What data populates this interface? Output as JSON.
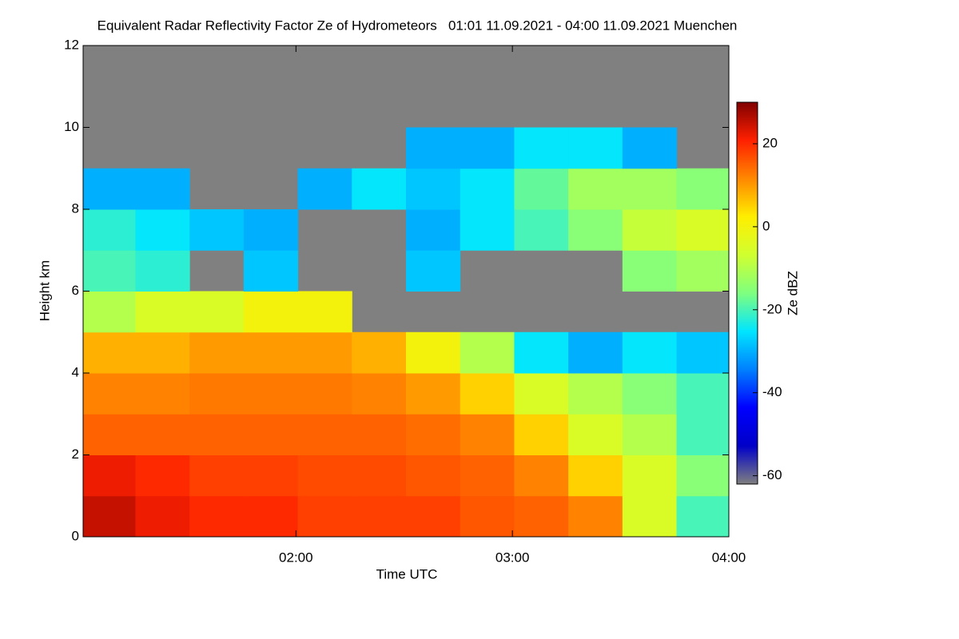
{
  "chart_data": {
    "type": "heatmap",
    "title": "Equivalent Radar Reflectivity Factor Ze of Hydrometeors   01:01 11.09.2021 - 04:00 11.09.2021 Muenchen",
    "x_label": "Time UTC",
    "y_label": "Height km",
    "colorbar_label": "Ze dBZ",
    "x": [
      68,
      83,
      98,
      113,
      128,
      143,
      158,
      173,
      188,
      203,
      218,
      233
    ],
    "y": [
      0.5,
      1.5,
      2.5,
      3.5,
      4.5,
      5.5,
      6.5,
      7.5,
      8.5,
      9.5,
      10.5,
      11.5
    ],
    "z": [
      [
        25,
        22,
        20,
        20,
        18,
        18,
        18,
        16,
        15,
        12,
        -5,
        -20
      ],
      [
        22,
        20,
        18,
        18,
        17,
        17,
        16,
        15,
        12,
        5,
        -5,
        -15
      ],
      [
        15,
        15,
        15,
        15,
        15,
        15,
        14,
        12,
        5,
        -5,
        -10,
        -20
      ],
      [
        12,
        12,
        13,
        13,
        13,
        12,
        10,
        5,
        -5,
        -10,
        -15,
        -20
      ],
      [
        8,
        8,
        10,
        10,
        10,
        8,
        0,
        -10,
        -25,
        -30,
        -25,
        -28
      ],
      [
        -10,
        -5,
        -5,
        0,
        0,
        null,
        null,
        null,
        null,
        null,
        null,
        null
      ],
      [
        -20,
        -22,
        null,
        -28,
        null,
        null,
        -28,
        null,
        null,
        null,
        -15,
        -12
      ],
      [
        -22,
        -25,
        -28,
        -30,
        null,
        null,
        -30,
        -25,
        -20,
        -15,
        -8,
        -5
      ],
      [
        -30,
        -30,
        null,
        null,
        -30,
        -25,
        -28,
        -25,
        -18,
        -12,
        -12,
        -15
      ],
      [
        null,
        null,
        null,
        null,
        null,
        null,
        -30,
        -30,
        -25,
        -25,
        -30,
        null
      ],
      [
        null,
        null,
        null,
        null,
        null,
        null,
        null,
        null,
        null,
        null,
        null,
        null
      ],
      [
        null,
        null,
        null,
        null,
        null,
        null,
        null,
        null,
        null,
        null,
        null,
        null
      ]
    ],
    "xlim": [
      61,
      240
    ],
    "ylim": [
      0,
      12
    ],
    "xticks": [
      {
        "value": 120,
        "label": "02:00"
      },
      {
        "value": 180,
        "label": "03:00"
      },
      {
        "value": 240,
        "label": "04:00"
      }
    ],
    "yticks": [
      0,
      2,
      4,
      6,
      8,
      10,
      12
    ],
    "zlim": [
      -62,
      30
    ],
    "zticks": [
      -60,
      -40,
      -20,
      0,
      20
    ],
    "colorscale": [
      "#808080",
      "#0000c8",
      "#0000ff",
      "#0080ff",
      "#00e5ff",
      "#7fff7f",
      "#d0ff30",
      "#ffee00",
      "#ff8800",
      "#ff2000",
      "#800000"
    ],
    "missing_color": "#808080"
  }
}
